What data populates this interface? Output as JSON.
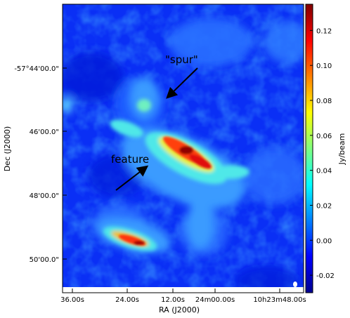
{
  "chart_data": {
    "type": "heatmap",
    "title": "",
    "xlabel": "RA (J2000)",
    "ylabel": "Dec (J2000)",
    "x_ticks": [
      "36.00s",
      "24.00s",
      "12.00s",
      "24m00.00s",
      "10h23m48.00s"
    ],
    "y_ticks": [
      "-57°44'00.0\"",
      "46'00.0\"",
      "48'00.0\"",
      "50'00.0\""
    ],
    "colorbar": {
      "label": "Jy/beam",
      "range": [
        -0.03,
        0.135
      ],
      "ticks": [
        "0.12",
        "0.10",
        "0.08",
        "0.06",
        "0.04",
        "0.02",
        "0.00",
        "-0.02"
      ],
      "tick_values": [
        0.12,
        0.1,
        0.08,
        0.06,
        0.04,
        0.02,
        0.0,
        -0.02
      ],
      "colormap": "jet"
    },
    "annotations": [
      {
        "text": "\"spur\"",
        "arrow": true
      },
      {
        "text": "feature",
        "arrow": true
      }
    ],
    "beam_marker": true
  }
}
